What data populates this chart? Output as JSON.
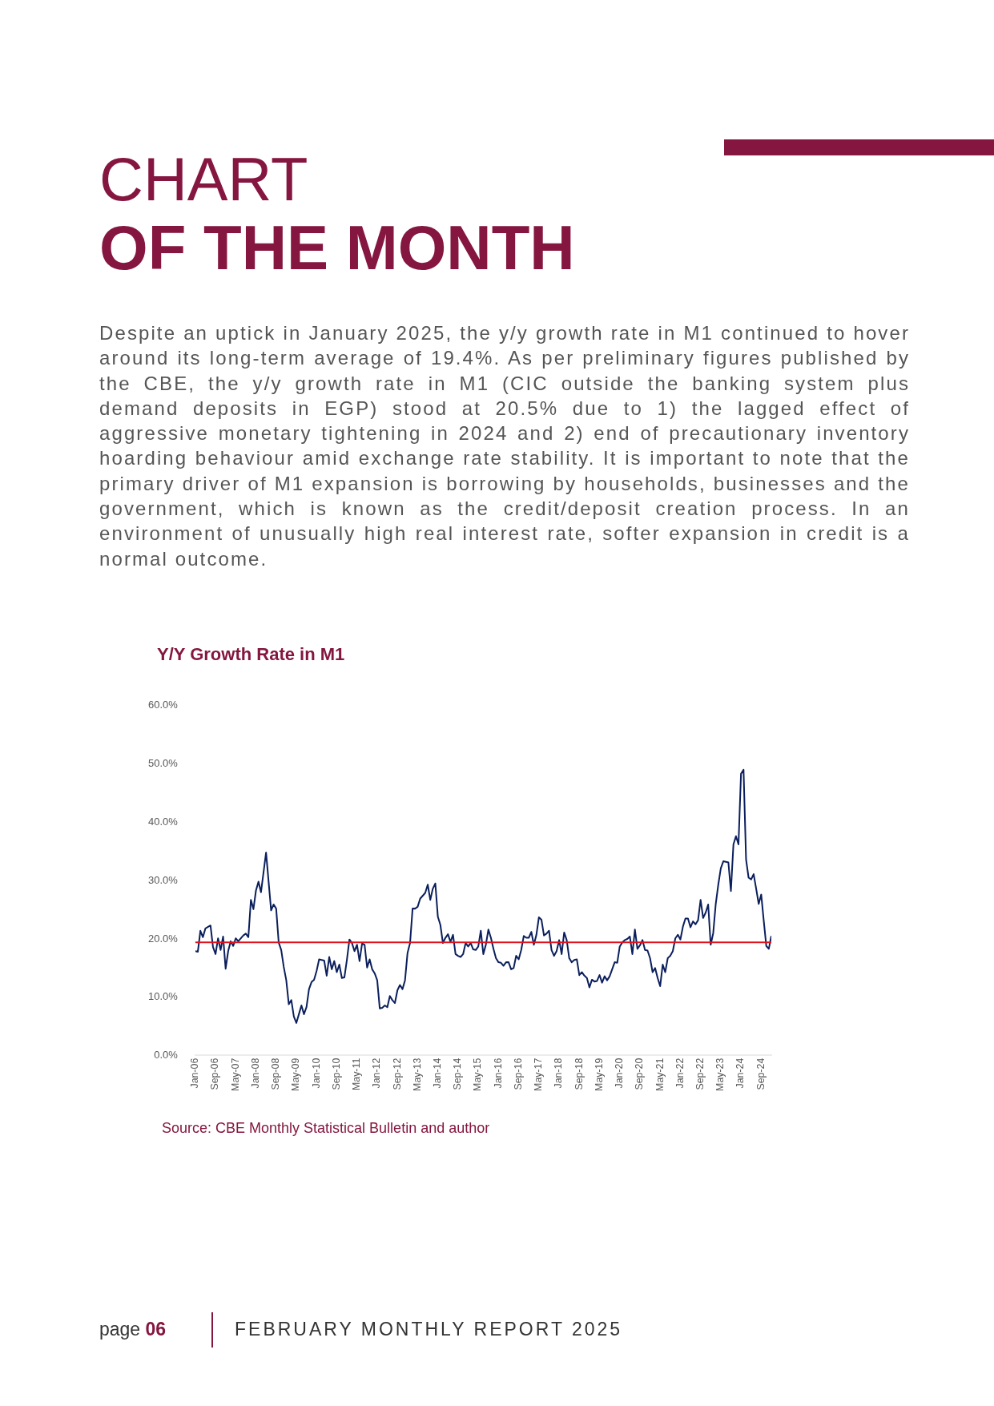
{
  "chart_data": {
    "type": "line",
    "title": "Y/Y Growth Rate in M1",
    "annotations": [
      "CHART",
      "OF THE MONTH",
      "Despite an uptick in January 2025, the y/y growth rate in M1 continued to hover around its long-term average of 19.4%. As per preliminary figures published by the CBE, the y/y growth rate in M1 (CIC outside the banking system plus demand deposits in EGP) stood at 20.5% due to 1) the lagged effect of aggressive monetary tightening in 2024 and 2) end of precautionary inventory hoarding behaviour amid exchange rate stability. It is important to note that the primary driver of M1 expansion is borrowing by households, businesses and the government, which is known as the credit/deposit creation process. In an environment of unusually high real interest rate, softer expansion in credit is a normal outcome.",
      "Source: CBE Monthly Statistical Bulletin and author",
      "page",
      "06",
      "FEBRUARY MONTHLY REPORT 2025"
    ],
    "series": [
      {
        "color": "#0b1f5c",
        "x": [
          "2006-01",
          "2006-02",
          "2006-03",
          "2006-04",
          "2006-05",
          "2006-07",
          "2006-08",
          "2006-09",
          "2006-10",
          "2006-11",
          "2006-12",
          "2007-01",
          "2007-02",
          "2007-03",
          "2007-04",
          "2007-05",
          "2007-06",
          "2007-08",
          "2007-09",
          "2007-10",
          "2007-11",
          "2007-12",
          "2008-01",
          "2008-02",
          "2008-03",
          "2008-05",
          "2008-07",
          "2008-08",
          "2008-09",
          "2008-10",
          "2008-11",
          "2008-12",
          "2009-01",
          "2009-02",
          "2009-03",
          "2009-04",
          "2009-05",
          "2009-06",
          "2009-07",
          "2009-08",
          "2009-09",
          "2009-10",
          "2009-11",
          "2009-12",
          "2010-01",
          "2010-02",
          "2010-04",
          "2010-05",
          "2010-06",
          "2010-07",
          "2010-08",
          "2010-09",
          "2010-10",
          "2010-11",
          "2010-12",
          "2011-01",
          "2011-02",
          "2011-03",
          "2011-04",
          "2011-05",
          "2011-06",
          "2011-07",
          "2011-08",
          "2011-09",
          "2011-10",
          "2011-11",
          "2011-12",
          "2012-01",
          "2012-02",
          "2012-03",
          "2012-04",
          "2012-05",
          "2012-06",
          "2012-07",
          "2012-08",
          "2012-09",
          "2012-10",
          "2012-11",
          "2012-12",
          "2013-01",
          "2013-02",
          "2013-03",
          "2013-04",
          "2013-05",
          "2013-06",
          "2013-08",
          "2013-09",
          "2013-10",
          "2013-11",
          "2013-12",
          "2014-01",
          "2014-02",
          "2014-03",
          "2014-04",
          "2014-05",
          "2014-06",
          "2014-07",
          "2014-08",
          "2014-09",
          "2014-10",
          "2014-11",
          "2014-12",
          "2015-01",
          "2015-02",
          "2015-03",
          "2015-04",
          "2015-05",
          "2015-06",
          "2015-07",
          "2015-08",
          "2015-09",
          "2015-10",
          "2015-11",
          "2015-12",
          "2016-01",
          "2016-02",
          "2016-03",
          "2016-04",
          "2016-05",
          "2016-06",
          "2016-07",
          "2016-08",
          "2016-09",
          "2016-10",
          "2016-11",
          "2016-12",
          "2017-01",
          "2017-02",
          "2017-03",
          "2017-04",
          "2017-05",
          "2017-06",
          "2017-07",
          "2017-08",
          "2017-09",
          "2017-10",
          "2017-11",
          "2017-12",
          "2018-01",
          "2018-02",
          "2018-03",
          "2018-04",
          "2018-05",
          "2018-06",
          "2018-07",
          "2018-08",
          "2018-09",
          "2018-10",
          "2018-11",
          "2018-12",
          "2019-01",
          "2019-02",
          "2019-03",
          "2019-04",
          "2019-05",
          "2019-06",
          "2019-07",
          "2019-08",
          "2019-09",
          "2019-10",
          "2019-11",
          "2019-12",
          "2020-01",
          "2020-02",
          "2020-03",
          "2020-04",
          "2020-05",
          "2020-06",
          "2020-07",
          "2020-08",
          "2020-09",
          "2020-10",
          "2020-11",
          "2020-12",
          "2021-01",
          "2021-02",
          "2021-03",
          "2021-04",
          "2021-05",
          "2021-06",
          "2021-07",
          "2021-08",
          "2021-09",
          "2021-10",
          "2021-11",
          "2021-12",
          "2022-01",
          "2022-02",
          "2022-03",
          "2022-04",
          "2022-05",
          "2022-06",
          "2022-07",
          "2022-08",
          "2022-09",
          "2022-10",
          "2022-11",
          "2022-12",
          "2023-01",
          "2023-02",
          "2023-03",
          "2023-04",
          "2023-05",
          "2023-06",
          "2023-07",
          "2023-08",
          "2023-09",
          "2023-10",
          "2023-11",
          "2023-12",
          "2024-01",
          "2024-02",
          "2024-03",
          "2024-04",
          "2024-05",
          "2024-06",
          "2024-07",
          "2024-08",
          "2024-09",
          "2024-10",
          "2024-11",
          "2024-12",
          "2025-01"
        ],
        "values": [
          17.9,
          17.8,
          21.4,
          20.3,
          21.8,
          22.3,
          18.6,
          17.4,
          20.1,
          18.1,
          20.4,
          14.9,
          17.9,
          19.6,
          18.8,
          20.1,
          19.6,
          20.6,
          20.9,
          20.3,
          26.7,
          25.1,
          28.3,
          29.8,
          28.0,
          34.8,
          24.9,
          25.9,
          25.2,
          19.4,
          18.1,
          15.2,
          12.9,
          8.8,
          9.5,
          6.7,
          5.6,
          7.1,
          8.6,
          7.1,
          8.3,
          11.4,
          12.6,
          13.0,
          14.5,
          16.5,
          16.3,
          13.7,
          16.9,
          14.8,
          16.2,
          14.3,
          15.6,
          13.3,
          13.4,
          16.4,
          19.9,
          19.3,
          17.9,
          19.0,
          16.2,
          19.2,
          19.0,
          15.1,
          16.5,
          14.8,
          14.1,
          12.9,
          8.1,
          8.2,
          8.6,
          8.3,
          10.2,
          9.5,
          9.0,
          11.2,
          12.1,
          11.4,
          12.9,
          17.6,
          19.3,
          25.2,
          25.2,
          25.5,
          26.9,
          27.9,
          29.3,
          26.7,
          28.6,
          29.5,
          23.8,
          22.4,
          19.3,
          20.2,
          20.8,
          19.5,
          20.7,
          17.4,
          17.1,
          16.9,
          17.4,
          19.3,
          18.7,
          19.3,
          18.2,
          18.1,
          18.7,
          21.4,
          17.4,
          19.0,
          21.6,
          20.2,
          18.3,
          16.7,
          16.0,
          15.9,
          15.4,
          16.0,
          16.0,
          14.8,
          15.0,
          17.1,
          16.5,
          18.1,
          20.5,
          20.2,
          20.2,
          21.2,
          19.0,
          20.7,
          23.7,
          23.3,
          20.6,
          20.9,
          21.4,
          18.1,
          17.1,
          17.9,
          19.8,
          17.4,
          21.1,
          19.8,
          16.7,
          16.0,
          16.4,
          16.5,
          13.8,
          14.3,
          13.7,
          13.3,
          11.7,
          13.0,
          12.7,
          12.8,
          13.8,
          12.5,
          13.6,
          12.9,
          13.6,
          14.8,
          16.0,
          15.9,
          18.7,
          19.4,
          19.8,
          20.0,
          20.4,
          17.4,
          21.6,
          18.3,
          18.9,
          19.8,
          18.1,
          18.0,
          16.7,
          14.3,
          15.0,
          13.3,
          11.9,
          15.6,
          14.3,
          16.7,
          17.1,
          17.9,
          20.1,
          20.7,
          19.9,
          22.1,
          23.5,
          23.5,
          22.0,
          23.0,
          22.5,
          23.2,
          26.7,
          23.6,
          24.5,
          25.9,
          19.0,
          21.0,
          26.0,
          29.3,
          32.1,
          33.3,
          33.2,
          33.1,
          28.2,
          36.2,
          37.6,
          36.2,
          48.3,
          49.0,
          33.6,
          30.5,
          30.2,
          31.1,
          28.6,
          26.0,
          27.6,
          23.1,
          18.8,
          18.3,
          20.5
        ]
      }
    ],
    "xlim": [
      "2006-01",
      "2025-01"
    ],
    "xticks": [
      {
        "value": "2006-01",
        "label": "Jan-06"
      },
      {
        "value": "2006-09",
        "label": "Sep-06"
      },
      {
        "value": "2007-05",
        "label": "May-07"
      },
      {
        "value": "2008-01",
        "label": "Jan-08"
      },
      {
        "value": "2008-09",
        "label": "Sep-08"
      },
      {
        "value": "2009-05",
        "label": "May-09"
      },
      {
        "value": "2010-01",
        "label": "Jan-10"
      },
      {
        "value": "2010-09",
        "label": "Sep-10"
      },
      {
        "value": "2011-05",
        "label": "May-11"
      },
      {
        "value": "2012-01",
        "label": "Jan-12"
      },
      {
        "value": "2012-09",
        "label": "Sep-12"
      },
      {
        "value": "2013-05",
        "label": "May-13"
      },
      {
        "value": "2014-01",
        "label": "Jan-14"
      },
      {
        "value": "2014-09",
        "label": "Sep-14"
      },
      {
        "value": "2015-05",
        "label": "May-15"
      },
      {
        "value": "2016-01",
        "label": "Jan-16"
      },
      {
        "value": "2016-09",
        "label": "Sep-16"
      },
      {
        "value": "2017-05",
        "label": "May-17"
      },
      {
        "value": "2018-01",
        "label": "Jan-18"
      },
      {
        "value": "2018-09",
        "label": "Sep-18"
      },
      {
        "value": "2019-05",
        "label": "May-19"
      },
      {
        "value": "2020-01",
        "label": "Jan-20"
      },
      {
        "value": "2020-09",
        "label": "Sep-20"
      },
      {
        "value": "2021-05",
        "label": "May-21"
      },
      {
        "value": "2022-01",
        "label": "Jan-22"
      },
      {
        "value": "2022-09",
        "label": "Sep-22"
      },
      {
        "value": "2023-05",
        "label": "May-23"
      },
      {
        "value": "2024-01",
        "label": "Jan-24"
      },
      {
        "value": "2024-09",
        "label": "Sep-24"
      }
    ],
    "ylim": [
      0,
      60
    ],
    "yticks": [
      {
        "value": 0,
        "label": "0.0%"
      },
      {
        "value": 10,
        "label": "10.0%"
      },
      {
        "value": 20,
        "label": "20.0%"
      },
      {
        "value": 30,
        "label": "30.0%"
      },
      {
        "value": 40,
        "label": "40.0%"
      },
      {
        "value": 50,
        "label": "50.0%"
      },
      {
        "value": 60,
        "label": "60.0%"
      }
    ],
    "ref_lines": [
      {
        "axis": "y",
        "value": 19.4,
        "color": "#e0141e"
      }
    ],
    "grid": false,
    "legend": false,
    "marker": "none",
    "line_style": "solid"
  }
}
